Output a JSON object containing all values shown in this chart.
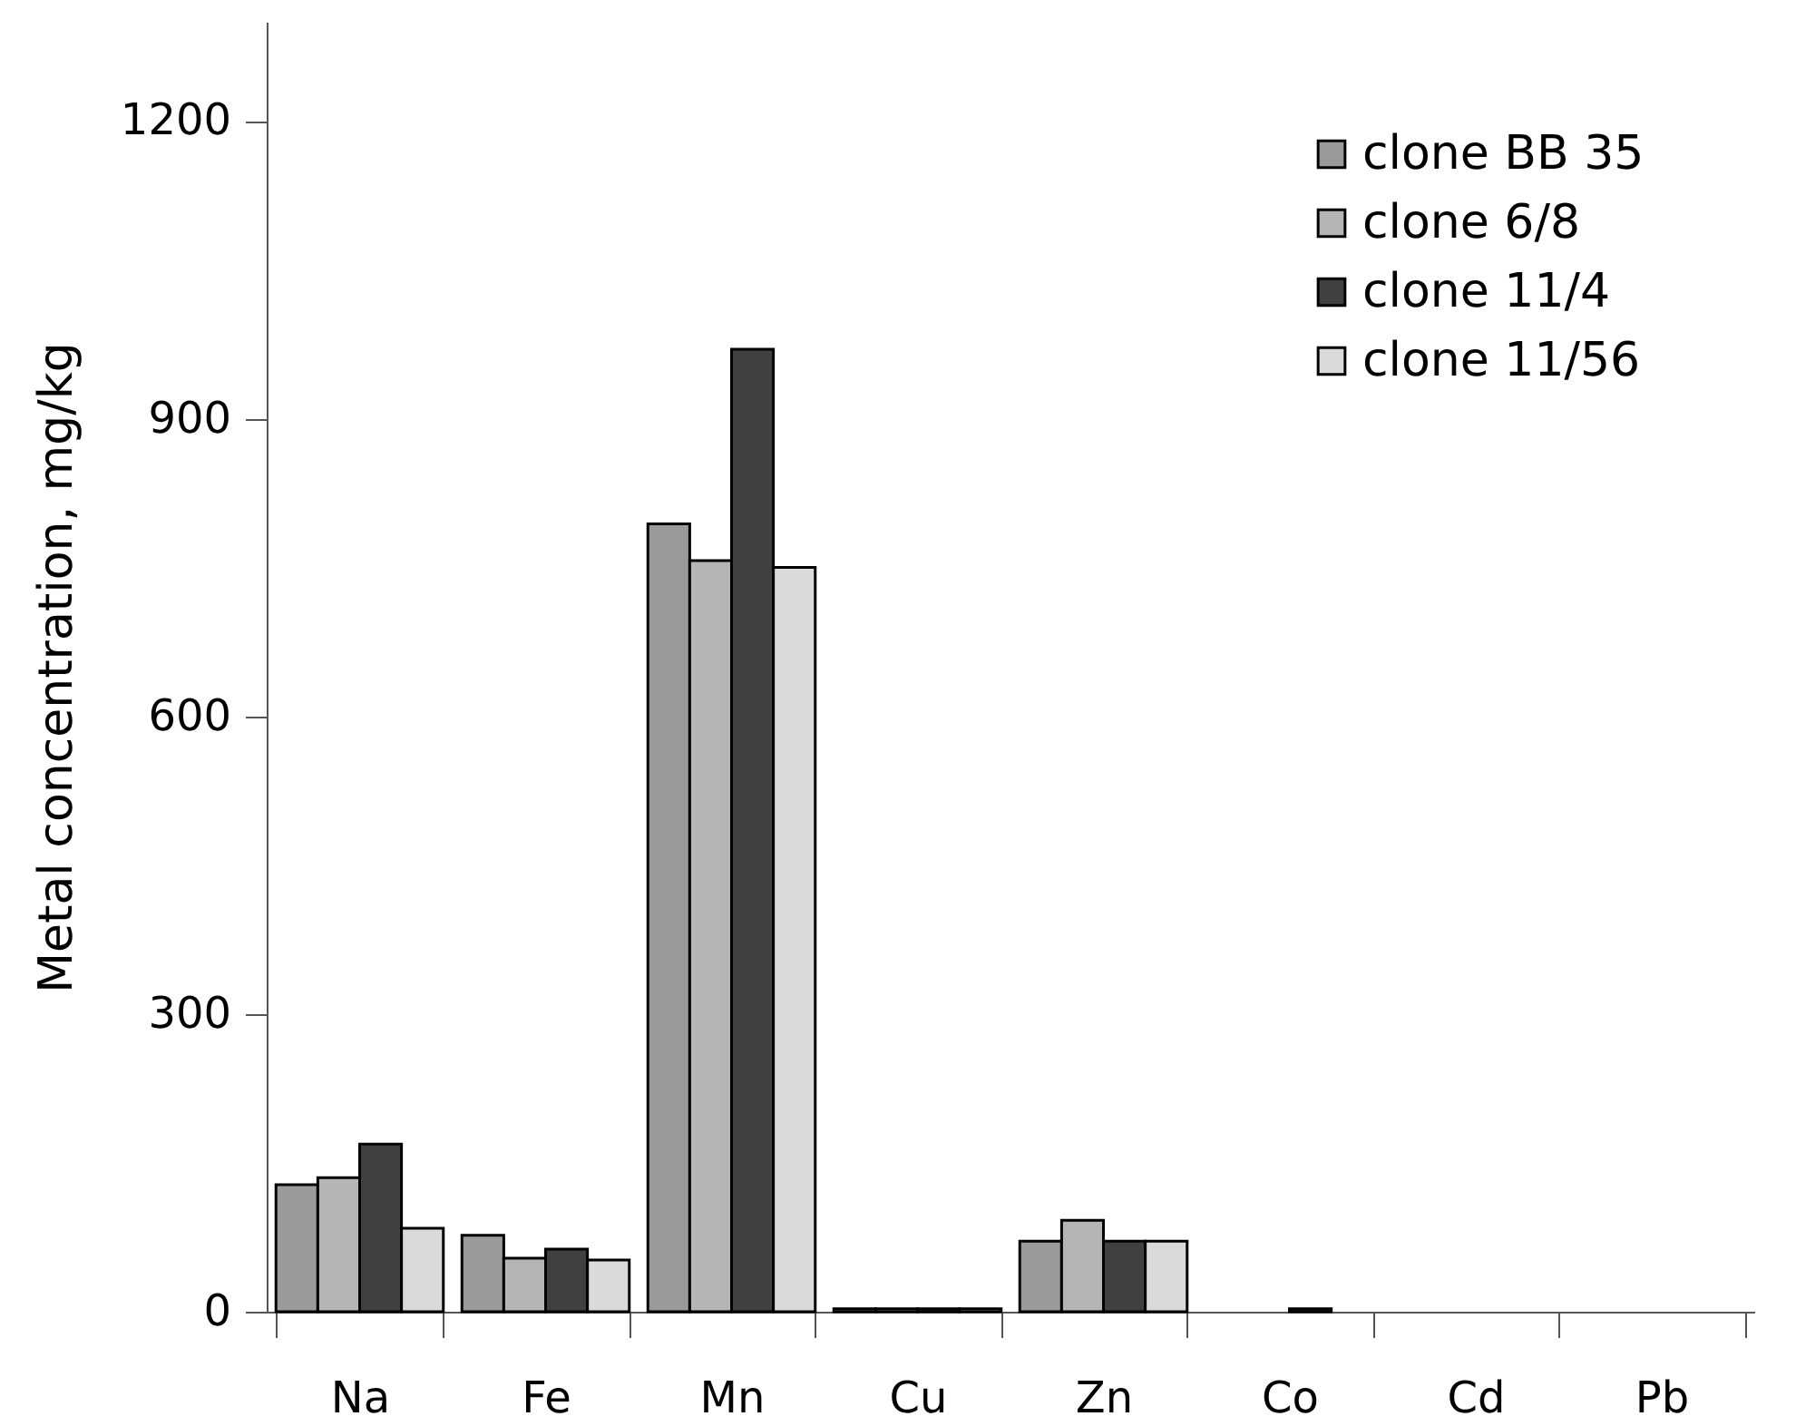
{
  "chart_data": {
    "type": "bar",
    "ylabel": "Metal concentration, mg/kg",
    "categories": [
      "Na",
      "Fe",
      "Mn",
      "Cu",
      "Zn",
      "Co",
      "Cd",
      "Pb"
    ],
    "series": [
      {
        "name": "clone BB 35",
        "color": "#9a9a9a",
        "values": [
          128,
          77,
          794,
          3,
          71,
          null,
          null,
          null
        ]
      },
      {
        "name": "clone 6/8",
        "color": "#b5b5b5",
        "values": [
          135,
          54,
          757,
          3,
          92,
          null,
          null,
          null
        ]
      },
      {
        "name": "clone 11/4",
        "color": "#404040",
        "values": [
          169,
          63,
          970,
          3,
          71,
          3,
          null,
          null
        ]
      },
      {
        "name": "clone 11/56",
        "color": "#dadada",
        "values": [
          84,
          52,
          750,
          3,
          71,
          null,
          null,
          null
        ]
      }
    ],
    "ylim": [
      0,
      1300
    ],
    "yticks": [
      0,
      300,
      600,
      900,
      1200
    ],
    "grid": false,
    "legend": "top right"
  }
}
